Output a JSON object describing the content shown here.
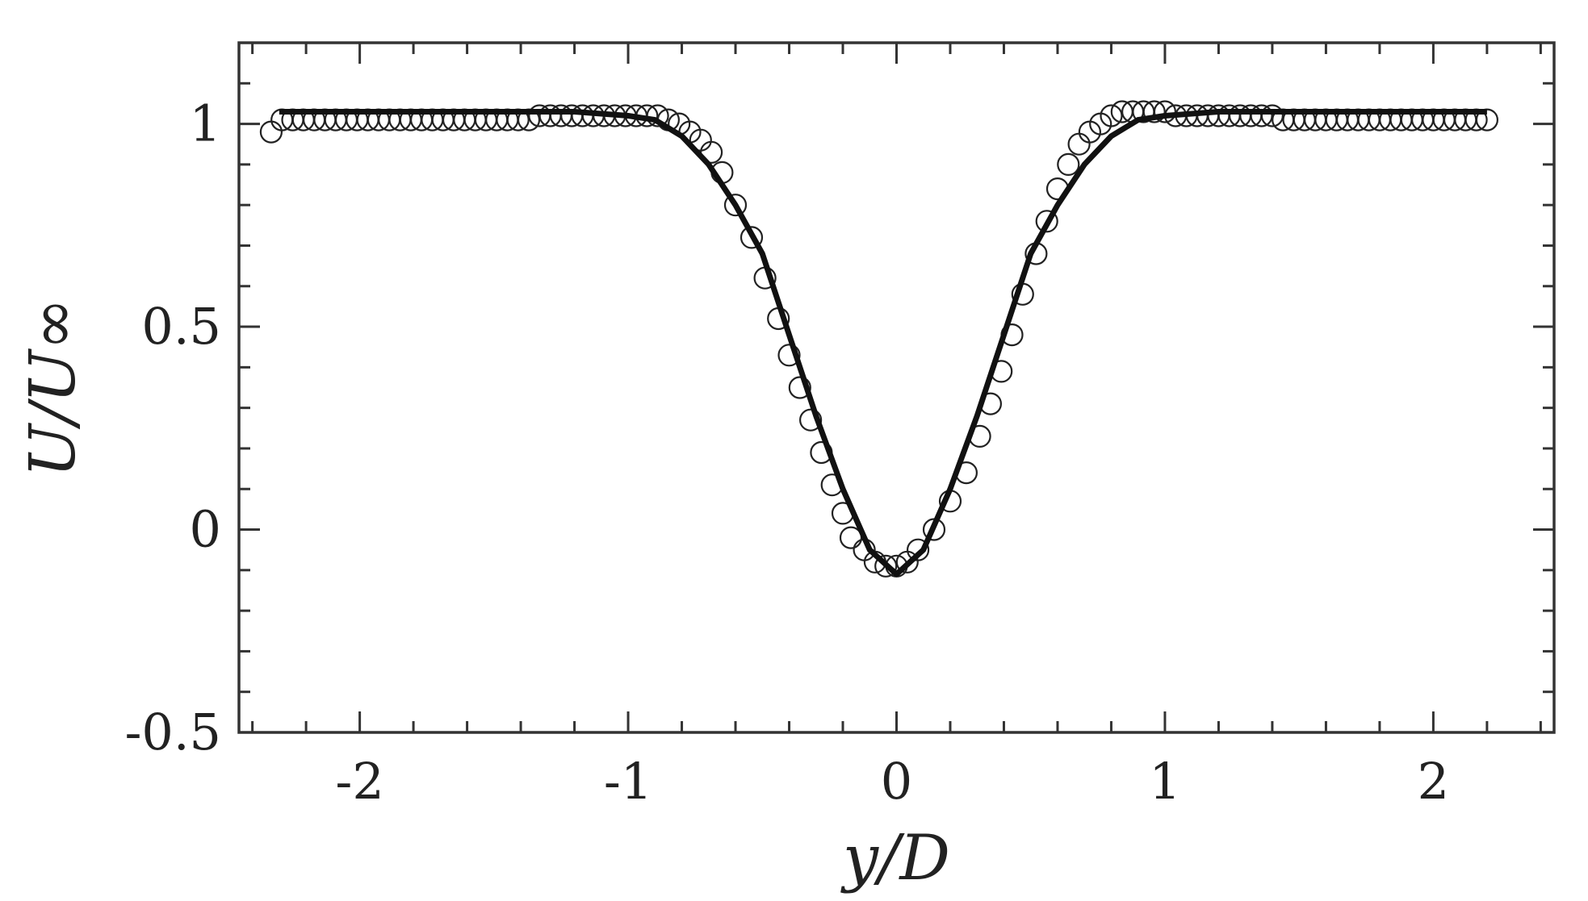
{
  "chart_data": {
    "type": "scatter",
    "title": "",
    "xlabel": "y/D",
    "ylabel": "U/U∞",
    "xlim": [
      -2.45,
      2.45
    ],
    "ylim": [
      -0.5,
      1.2
    ],
    "xticks": [
      -2,
      -1,
      0,
      1,
      2
    ],
    "xtick_labels": [
      "-2",
      "-1",
      "0",
      "1",
      "2"
    ],
    "yticks": [
      -0.5,
      0,
      0.5,
      1
    ],
    "ytick_labels": [
      "-0.5",
      "0",
      "0.5",
      "1"
    ],
    "grid": false,
    "legend": "none",
    "series": [
      {
        "style": "circles",
        "x": [
          -2.33,
          -2.29,
          -2.25,
          -2.21,
          -2.17,
          -2.13,
          -2.09,
          -2.05,
          -2.01,
          -1.97,
          -1.93,
          -1.89,
          -1.85,
          -1.81,
          -1.77,
          -1.73,
          -1.69,
          -1.65,
          -1.61,
          -1.57,
          -1.53,
          -1.49,
          -1.45,
          -1.41,
          -1.37,
          -1.33,
          -1.29,
          -1.25,
          -1.21,
          -1.17,
          -1.13,
          -1.09,
          -1.05,
          -1.01,
          -0.97,
          -0.93,
          -0.89,
          -0.85,
          -0.81,
          -0.77,
          -0.73,
          -0.69,
          -0.65,
          -0.6,
          -0.54,
          -0.49,
          -0.44,
          -0.4,
          -0.36,
          -0.32,
          -0.28,
          -0.24,
          -0.2,
          -0.17,
          -0.12,
          -0.08,
          -0.04,
          0.0,
          0.04,
          0.08,
          0.14,
          0.2,
          0.26,
          0.31,
          0.35,
          0.39,
          0.43,
          0.47,
          0.52,
          0.56,
          0.6,
          0.64,
          0.68,
          0.72,
          0.76,
          0.8,
          0.84,
          0.88,
          0.92,
          0.96,
          1.0,
          1.04,
          1.08,
          1.12,
          1.16,
          1.2,
          1.24,
          1.28,
          1.32,
          1.36,
          1.4,
          1.44,
          1.48,
          1.52,
          1.56,
          1.6,
          1.64,
          1.68,
          1.72,
          1.76,
          1.8,
          1.84,
          1.88,
          1.92,
          1.96,
          2.0,
          2.04,
          2.08,
          2.12,
          2.16,
          2.2
        ],
        "y": [
          0.98,
          1.01,
          1.01,
          1.01,
          1.01,
          1.01,
          1.01,
          1.01,
          1.01,
          1.01,
          1.01,
          1.01,
          1.01,
          1.01,
          1.01,
          1.01,
          1.01,
          1.01,
          1.01,
          1.01,
          1.01,
          1.01,
          1.01,
          1.01,
          1.01,
          1.02,
          1.02,
          1.02,
          1.02,
          1.02,
          1.02,
          1.02,
          1.02,
          1.02,
          1.02,
          1.02,
          1.02,
          1.01,
          1.0,
          0.98,
          0.96,
          0.93,
          0.88,
          0.8,
          0.72,
          0.62,
          0.52,
          0.43,
          0.35,
          0.27,
          0.19,
          0.11,
          0.04,
          -0.02,
          -0.05,
          -0.08,
          -0.09,
          -0.09,
          -0.08,
          -0.05,
          0.0,
          0.07,
          0.14,
          0.23,
          0.31,
          0.39,
          0.48,
          0.58,
          0.68,
          0.76,
          0.84,
          0.9,
          0.95,
          0.98,
          1.0,
          1.02,
          1.03,
          1.03,
          1.03,
          1.03,
          1.03,
          1.02,
          1.02,
          1.02,
          1.02,
          1.02,
          1.02,
          1.02,
          1.02,
          1.02,
          1.02,
          1.01,
          1.01,
          1.01,
          1.01,
          1.01,
          1.01,
          1.01,
          1.01,
          1.01,
          1.01,
          1.01,
          1.01,
          1.01,
          1.01,
          1.01,
          1.01,
          1.01,
          1.01,
          1.01,
          1.01
        ]
      },
      {
        "style": "line",
        "x": [
          -2.3,
          -2.0,
          -1.5,
          -1.2,
          -1.0,
          -0.9,
          -0.8,
          -0.7,
          -0.6,
          -0.5,
          -0.4,
          -0.3,
          -0.2,
          -0.1,
          0.0,
          0.1,
          0.2,
          0.3,
          0.4,
          0.5,
          0.6,
          0.7,
          0.8,
          0.9,
          1.0,
          1.2,
          1.5,
          2.0,
          2.2
        ],
        "y": [
          1.03,
          1.03,
          1.03,
          1.03,
          1.02,
          1.01,
          0.97,
          0.9,
          0.8,
          0.68,
          0.48,
          0.28,
          0.1,
          -0.05,
          -0.11,
          -0.05,
          0.1,
          0.28,
          0.48,
          0.68,
          0.8,
          0.9,
          0.97,
          1.01,
          1.02,
          1.03,
          1.03,
          1.03,
          1.03
        ]
      }
    ]
  }
}
